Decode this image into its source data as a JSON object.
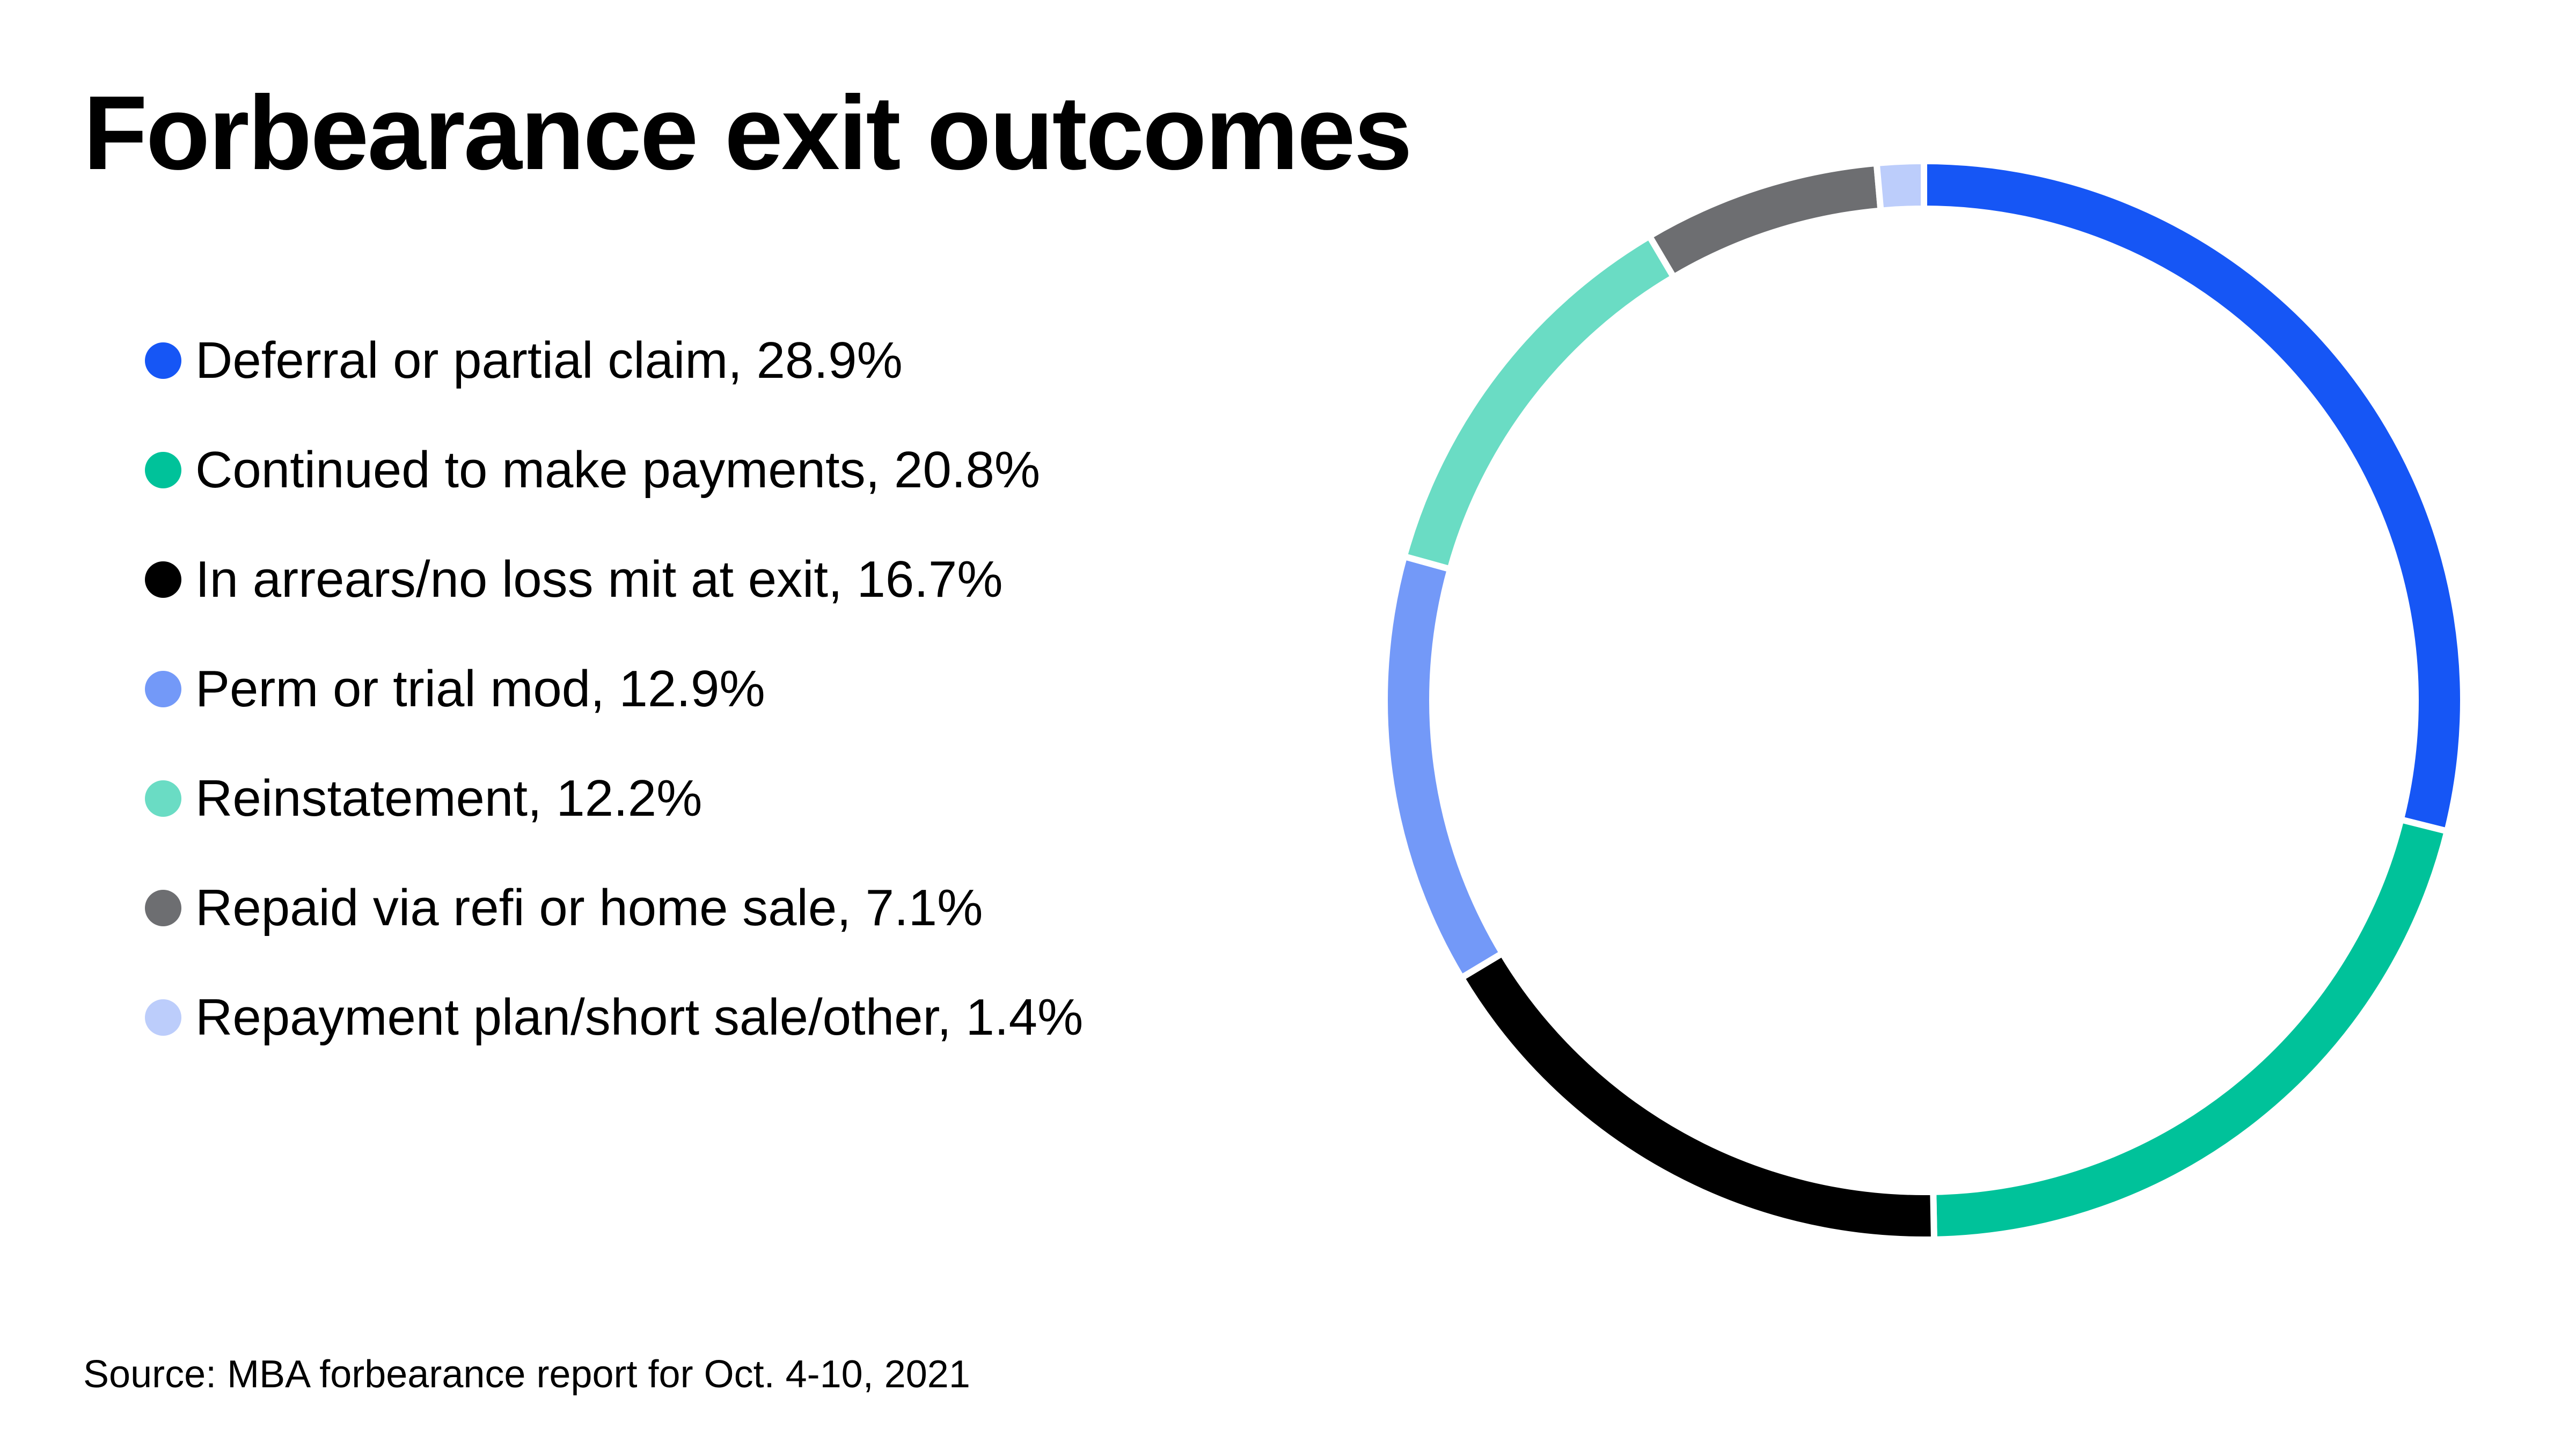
{
  "chart_data": {
    "type": "pie",
    "style": "donut",
    "title": "Forbearance exit outcomes",
    "legend_position": "left",
    "slices": [
      {
        "label": "Deferral or partial claim, 28.9%",
        "value": 28.9,
        "color": "#1656F5"
      },
      {
        "label": "Continued to make payments, 20.8%",
        "value": 20.8,
        "color": "#00C29A"
      },
      {
        "label": "In arrears/no loss mit at exit, 16.7%",
        "value": 16.7,
        "color": "#000000"
      },
      {
        "label": "Perm or trial mod, 12.9%",
        "value": 12.9,
        "color": "#7399F8"
      },
      {
        "label": "Reinstatement, 12.2%",
        "value": 12.2,
        "color": "#6ADCC4"
      },
      {
        "label": "Repaid via refi or home sale, 7.1%",
        "value": 7.1,
        "color": "#6D6E71"
      },
      {
        "label": "Repayment plan/short sale/other, 1.4%",
        "value": 1.4,
        "color": "#BCCDFB"
      }
    ],
    "source": "Source: MBA forbearance report for Oct. 4-10, 2021"
  }
}
